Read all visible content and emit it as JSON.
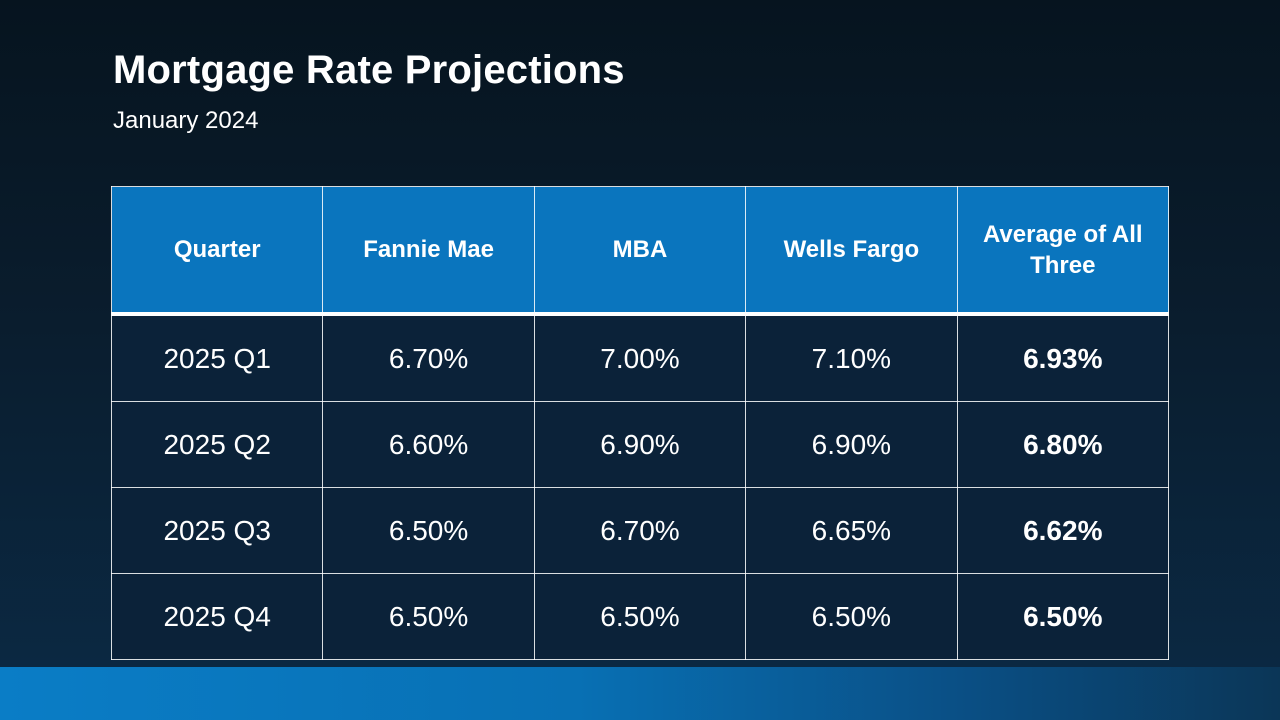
{
  "slide": {
    "title": "Mortgage Rate Projections",
    "subtitle": "January 2024"
  },
  "table": {
    "headers": [
      "Quarter",
      "Fannie Mae",
      "MBA",
      "Wells Fargo",
      "Average of All Three"
    ],
    "rows": [
      {
        "quarter": "2025 Q1",
        "fannie_mae": "6.70%",
        "mba": "7.00%",
        "wells_fargo": "7.10%",
        "average": "6.93%"
      },
      {
        "quarter": "2025 Q2",
        "fannie_mae": "6.60%",
        "mba": "6.90%",
        "wells_fargo": "6.90%",
        "average": "6.80%"
      },
      {
        "quarter": "2025 Q3",
        "fannie_mae": "6.50%",
        "mba": "6.70%",
        "wells_fargo": "6.65%",
        "average": "6.62%"
      },
      {
        "quarter": "2025 Q4",
        "fannie_mae": "6.50%",
        "mba": "6.50%",
        "wells_fargo": "6.50%",
        "average": "6.50%"
      }
    ]
  },
  "colors": {
    "header_fill": "#0a75be",
    "body_fill": "#0b2239",
    "background_top": "#06141f",
    "background_bottom": "#0b2a45",
    "footer_band": "#0a7dc6"
  }
}
